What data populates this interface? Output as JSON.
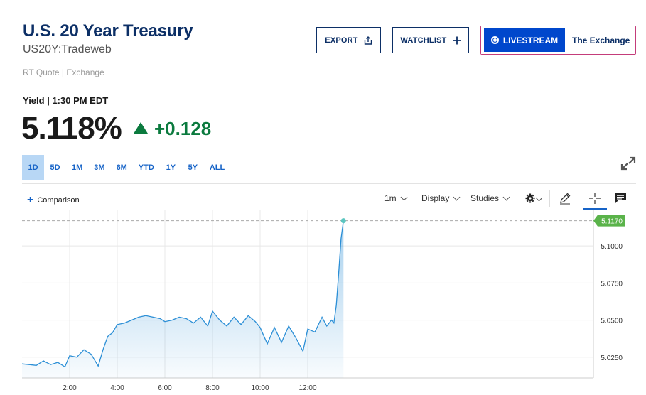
{
  "header": {
    "title": "U.S. 20 Year Treasury",
    "symbol": "US20Y:Tradeweb",
    "quote_source": "RT Quote | Exchange",
    "export_label": "EXPORT",
    "watchlist_label": "WATCHLIST",
    "livestream_label": "LIVESTREAM",
    "livestream_show": "The Exchange"
  },
  "quote": {
    "yield_label": "Yield | 1:30 PM EDT",
    "price": "5.118%",
    "change": "+0.128",
    "change_direction": "up",
    "up_color": "#0b7a3e"
  },
  "ranges": [
    "1D",
    "5D",
    "1M",
    "3M",
    "6M",
    "YTD",
    "1Y",
    "5Y",
    "ALL"
  ],
  "active_range": "1D",
  "toolbar": {
    "comparison_label": "Comparison",
    "interval_label": "1m",
    "display_label": "Display",
    "studies_label": "Studies",
    "icons": [
      "settings-gear-icon",
      "draw-pencil-icon",
      "crosshair-icon",
      "comment-icon"
    ]
  },
  "chart_data": {
    "type": "area",
    "x_tick_labels": [
      "2:00",
      "4:00",
      "6:00",
      "8:00",
      "10:00",
      "12:00"
    ],
    "y_tick_labels": [
      "5.1000",
      "5.0750",
      "5.0500",
      "5.0250"
    ],
    "last_value_label": "5.1170",
    "last_value": 5.117,
    "x_range_hours": [
      0.0,
      24.0
    ],
    "ylim": [
      5.011,
      5.1245
    ],
    "grid": true,
    "line_color": "#2c8fd6",
    "last_label_color": "#5ab34a",
    "series": [
      {
        "x": [
          0.0,
          0.3,
          0.6,
          0.9,
          1.2,
          1.5,
          1.8,
          2.0,
          2.3,
          2.6,
          2.9,
          3.2,
          3.4,
          3.6,
          3.8,
          4.0,
          4.3,
          4.6,
          4.9,
          5.2,
          5.5,
          5.8,
          6.0,
          6.3,
          6.6,
          6.9,
          7.2,
          7.5,
          7.8,
          8.0,
          8.3,
          8.6,
          8.9,
          9.2,
          9.5,
          9.8,
          10.0,
          10.3,
          10.6,
          10.9,
          11.2,
          11.5,
          11.8,
          12.0,
          12.3,
          12.6,
          12.8,
          13.0,
          13.1,
          13.2,
          13.3,
          13.4,
          13.5
        ],
        "y": [
          5.0205,
          5.02,
          5.0195,
          5.0225,
          5.02,
          5.0215,
          5.0185,
          5.026,
          5.025,
          5.03,
          5.027,
          5.019,
          5.03,
          5.039,
          5.0415,
          5.047,
          5.048,
          5.05,
          5.052,
          5.053,
          5.052,
          5.051,
          5.049,
          5.05,
          5.052,
          5.051,
          5.048,
          5.052,
          5.046,
          5.056,
          5.05,
          5.046,
          5.052,
          5.047,
          5.053,
          5.049,
          5.045,
          5.034,
          5.045,
          5.035,
          5.046,
          5.038,
          5.029,
          5.044,
          5.042,
          5.052,
          5.046,
          5.05,
          5.048,
          5.06,
          5.082,
          5.105,
          5.117
        ]
      }
    ]
  }
}
